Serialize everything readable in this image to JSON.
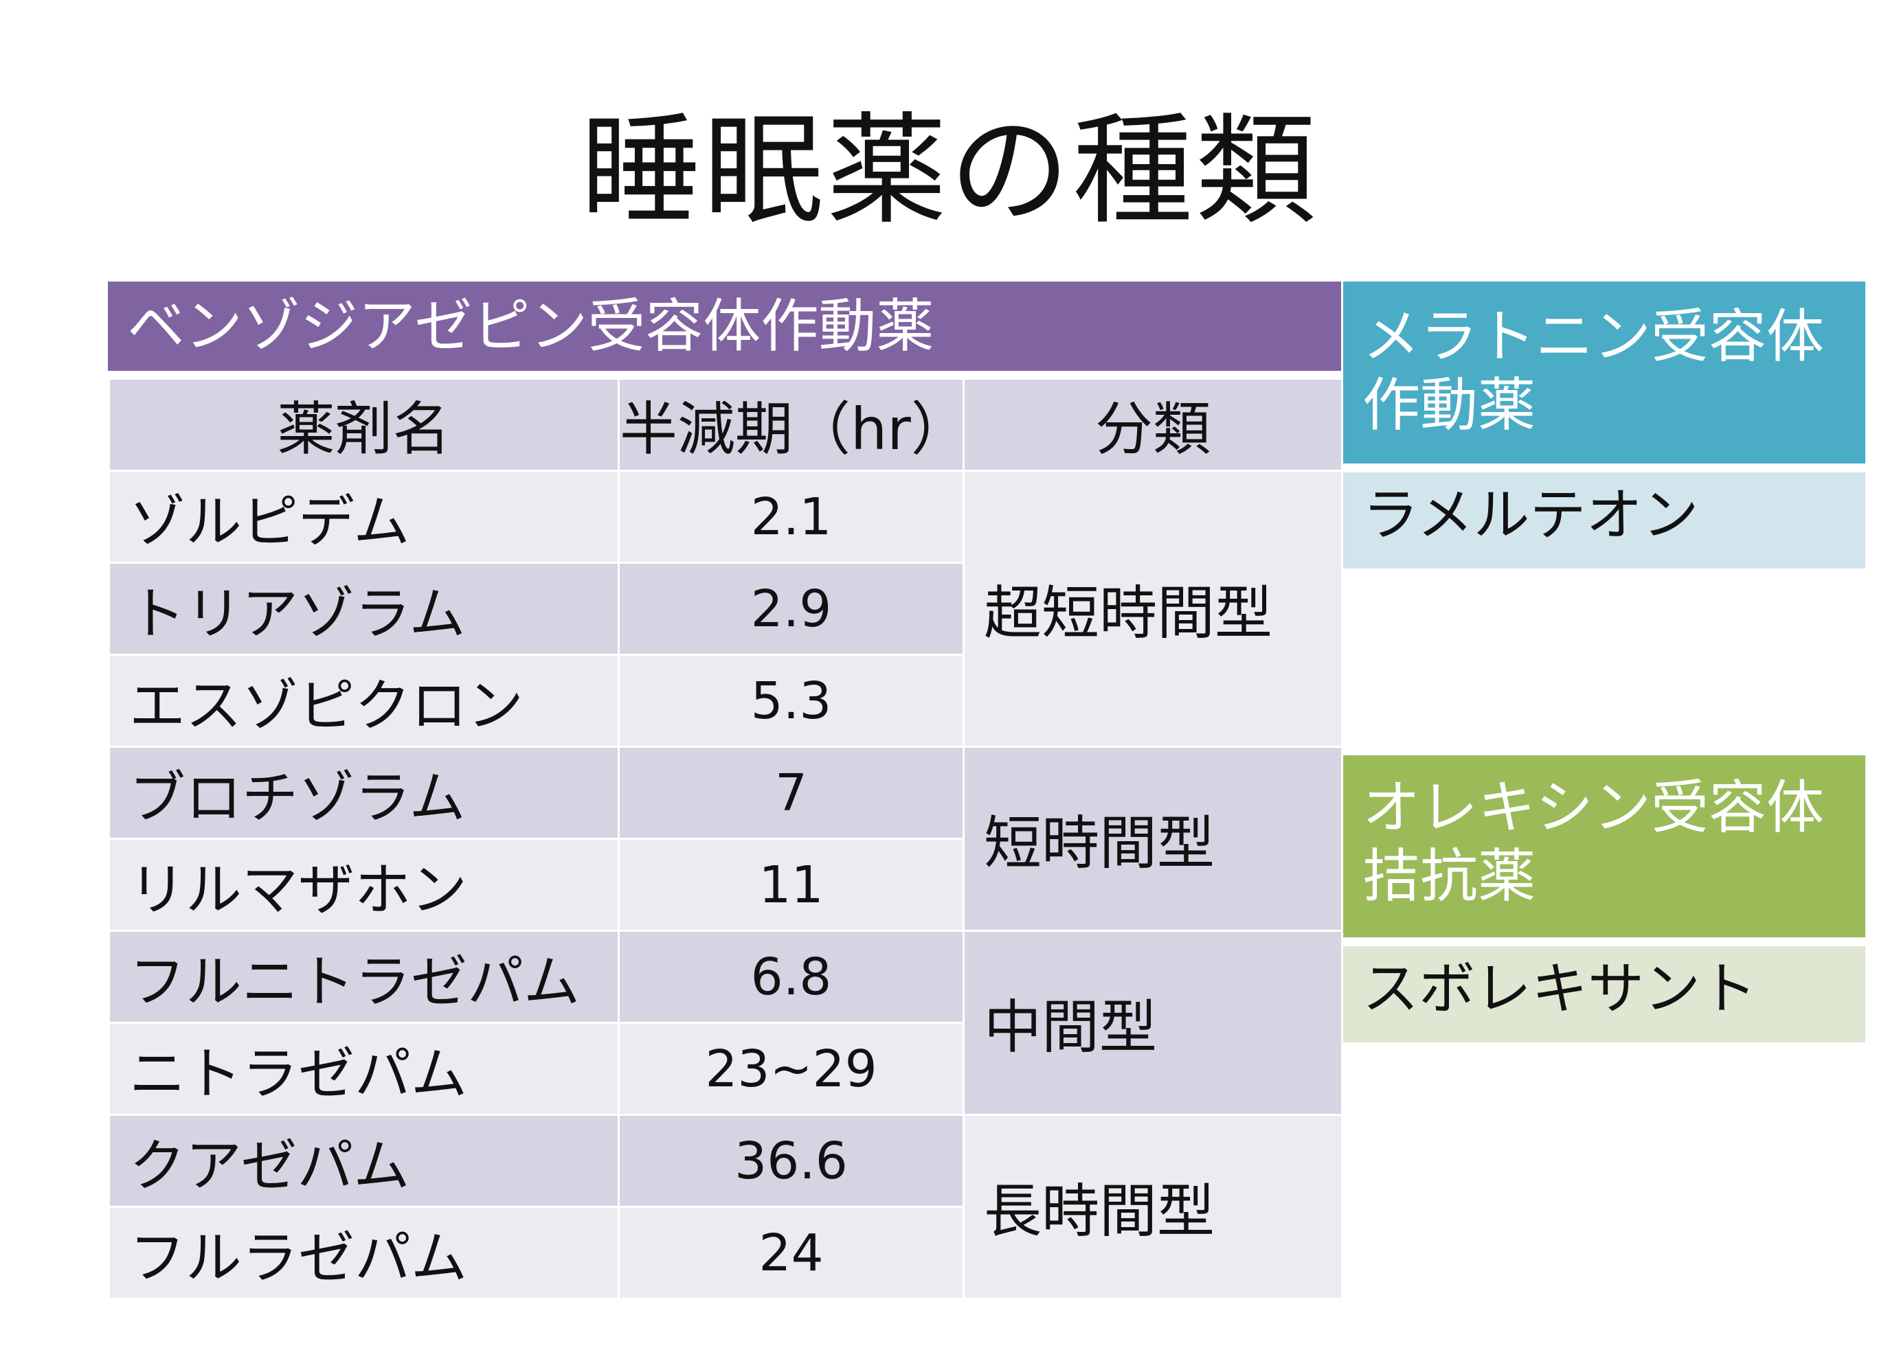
{
  "title": "睡眠薬の種類",
  "benzodiazepine": {
    "header": "ベンゾジアゼピン受容体作動薬",
    "columns": [
      "薬剤名",
      "半減期（hr）",
      "分類"
    ],
    "rows": [
      {
        "name": "ゾルピデム",
        "half_life": "2.1"
      },
      {
        "name": "トリアゾラム",
        "half_life": "2.9"
      },
      {
        "name": "エスゾピクロン",
        "half_life": "5.3"
      },
      {
        "name": "ブロチゾラム",
        "half_life": "7"
      },
      {
        "name": "リルマザホン",
        "half_life": "11"
      },
      {
        "name": "フルニトラゼパム",
        "half_life": "6.8"
      },
      {
        "name": "ニトラゼパム",
        "half_life": "23~29"
      },
      {
        "name": "クアゼパム",
        "half_life": "36.6"
      },
      {
        "name": "フルラゼパム",
        "half_life": "24"
      }
    ],
    "classes": [
      "超短時間型",
      "短時間型",
      "中間型",
      "長時間型"
    ]
  },
  "melatonin": {
    "header_line1": "メラトニン受容体",
    "header_line2": "作動薬",
    "drug": "ラメルテオン",
    "color": "#4bacc6"
  },
  "orexin": {
    "header_line1": "オレキシン受容体",
    "header_line2": "拮抗薬",
    "drug": "スボレキサント",
    "color": "#9bbb59"
  },
  "colors": {
    "benzodiazepine_header": "#8064a2",
    "row_dark": "#d8d3e3",
    "row_light": "#edebf1"
  }
}
